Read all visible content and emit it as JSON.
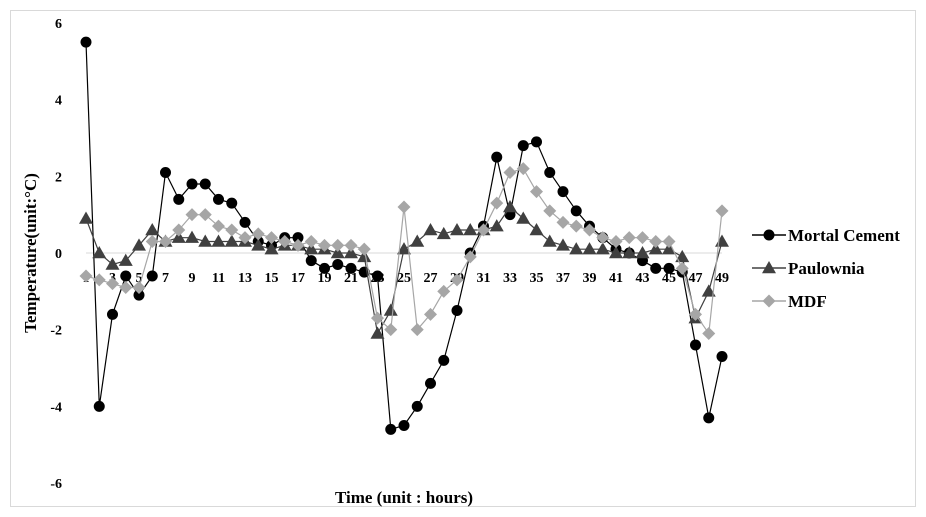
{
  "chart_data": {
    "type": "line",
    "title": "",
    "xlabel": "Time (unit : hours)",
    "ylabel": "Temperature(unit:°C)",
    "ylim": [
      -6,
      6
    ],
    "yticks": [
      6,
      4,
      2,
      0,
      -2,
      -4,
      -6
    ],
    "xlim": [
      1,
      49
    ],
    "x_tick_labels": [
      "1",
      "3",
      "5",
      "7",
      "9",
      "11",
      "13",
      "15",
      "17",
      "19",
      "21",
      "23",
      "25",
      "27",
      "29",
      "31",
      "33",
      "35",
      "37",
      "39",
      "41",
      "43",
      "45",
      "47",
      "49"
    ],
    "x": [
      1,
      2,
      3,
      4,
      5,
      6,
      7,
      8,
      9,
      10,
      11,
      12,
      13,
      14,
      15,
      16,
      17,
      18,
      19,
      20,
      21,
      22,
      23,
      24,
      25,
      26,
      27,
      28,
      29,
      30,
      31,
      32,
      33,
      34,
      35,
      36,
      37,
      38,
      39,
      40,
      41,
      42,
      43,
      44,
      45,
      46,
      47,
      48,
      49
    ],
    "legend_position": "right",
    "grid": false,
    "series": [
      {
        "name": "Mortal Cement",
        "marker": "circle",
        "color": "#000000",
        "values": [
          5.5,
          -4.0,
          -1.6,
          -0.6,
          -1.1,
          -0.6,
          2.1,
          1.4,
          1.8,
          1.8,
          1.4,
          1.3,
          0.8,
          0.3,
          0.2,
          0.4,
          0.4,
          -0.2,
          -0.4,
          -0.3,
          -0.4,
          -0.5,
          -0.6,
          -4.6,
          -4.5,
          -4.0,
          -3.4,
          -2.8,
          -1.5,
          0.0,
          0.7,
          2.5,
          1.0,
          2.8,
          2.9,
          2.1,
          1.6,
          1.1,
          0.7,
          0.4,
          0.1,
          0.0,
          -0.2,
          -0.4,
          -0.4,
          -0.5,
          -2.4,
          -4.3,
          -2.7
        ]
      },
      {
        "name": "Paulownia",
        "marker": "triangle",
        "color": "#404040",
        "values": [
          0.9,
          0.0,
          -0.3,
          -0.2,
          0.2,
          0.6,
          0.3,
          0.4,
          0.4,
          0.3,
          0.3,
          0.3,
          0.3,
          0.2,
          0.1,
          0.2,
          0.2,
          0.1,
          0.1,
          0.0,
          0.0,
          -0.1,
          -2.1,
          -1.5,
          0.1,
          0.3,
          0.6,
          0.5,
          0.6,
          0.6,
          0.6,
          0.7,
          1.2,
          0.9,
          0.6,
          0.3,
          0.2,
          0.1,
          0.1,
          0.1,
          0.0,
          0.0,
          0.0,
          0.1,
          0.1,
          -0.1,
          -1.7,
          -1.0,
          0.3
        ]
      },
      {
        "name": "MDF",
        "marker": "diamond",
        "color": "#a6a6a6",
        "values": [
          -0.6,
          -0.7,
          -0.8,
          -0.9,
          -0.9,
          0.3,
          0.3,
          0.6,
          1.0,
          1.0,
          0.7,
          0.6,
          0.4,
          0.5,
          0.4,
          0.3,
          0.2,
          0.3,
          0.2,
          0.2,
          0.2,
          0.1,
          -1.7,
          -2.0,
          1.2,
          -2.0,
          -1.6,
          -1.0,
          -0.7,
          -0.1,
          0.6,
          1.3,
          2.1,
          2.2,
          1.6,
          1.1,
          0.8,
          0.7,
          0.6,
          0.4,
          0.3,
          0.4,
          0.4,
          0.3,
          0.3,
          -0.4,
          -1.6,
          -2.1,
          1.1
        ]
      }
    ]
  }
}
